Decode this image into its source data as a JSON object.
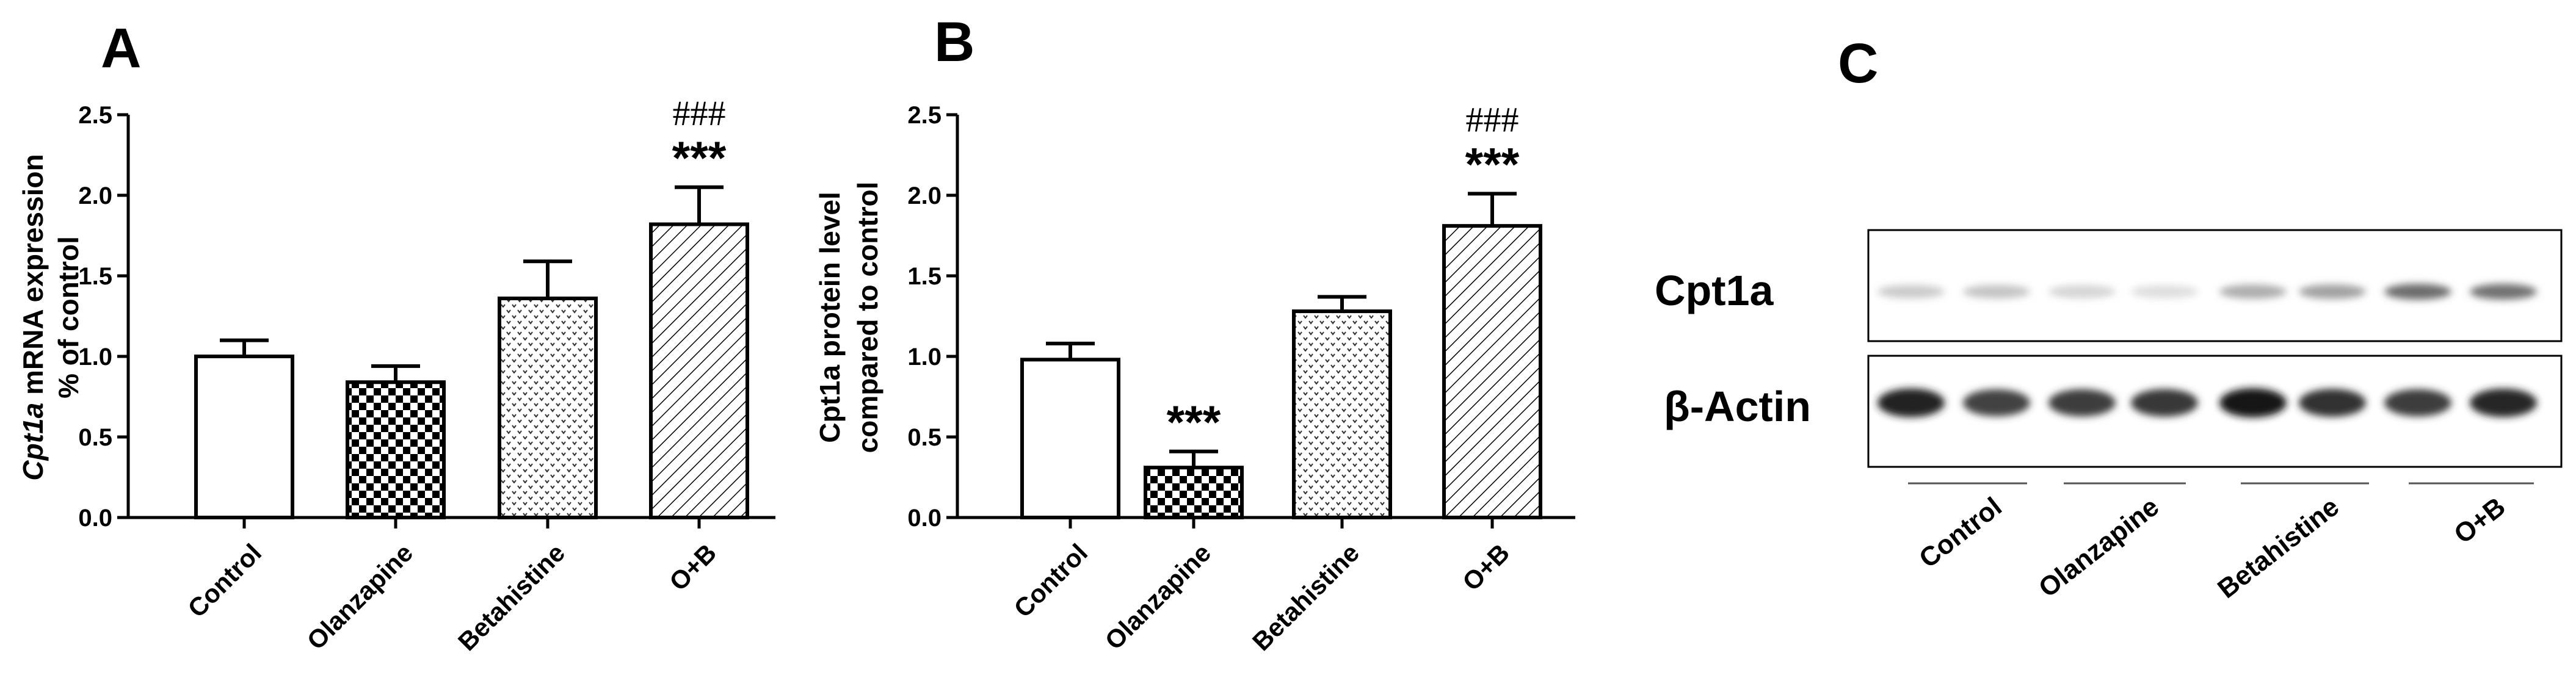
{
  "chart_data": [
    {
      "panel": "A",
      "type": "bar",
      "categories": [
        "Control",
        "Olanzapine",
        "Betahistine",
        "O+B"
      ],
      "values": [
        1.0,
        0.84,
        1.36,
        1.82
      ],
      "errors": [
        0.1,
        0.1,
        0.23,
        0.23
      ],
      "ylabel_italic": "Cpt1a",
      "ylabel_rest": " mRNA expression",
      "ylabel_line2": "% of control",
      "ylim": [
        0,
        2.5
      ],
      "yticks": [
        "0.0",
        "0.5",
        "1.0",
        "1.5",
        "2.0",
        "2.5"
      ],
      "patterns": [
        "white",
        "checker",
        "dots",
        "hatch"
      ],
      "annotations": [
        {
          "index": 3,
          "stars": "***",
          "hash": "###"
        }
      ]
    },
    {
      "panel": "B",
      "type": "bar",
      "categories": [
        "Control",
        "Olanzapine",
        "Betahistine",
        "O+B"
      ],
      "values": [
        0.98,
        0.31,
        1.28,
        1.81
      ],
      "errors": [
        0.1,
        0.1,
        0.09,
        0.2
      ],
      "ylabel_line1": "Cpt1a protein level",
      "ylabel_line2": "compared to control",
      "ylim": [
        0,
        2.5
      ],
      "yticks": [
        "0.0",
        "0.5",
        "1.0",
        "1.5",
        "2.0",
        "2.5"
      ],
      "patterns": [
        "white",
        "checker",
        "dots",
        "hatch"
      ],
      "annotations": [
        {
          "index": 1,
          "stars": "***"
        },
        {
          "index": 3,
          "stars": "***",
          "hash": "###"
        }
      ]
    }
  ],
  "blot": {
    "panel": "C",
    "rows": [
      "Cpt1a",
      "β-Actin"
    ],
    "groups": [
      "Control",
      "Olanzapine",
      "Betahistine",
      "O+B"
    ],
    "lanes_per_group": 2,
    "band_intensity": {
      "Cpt1a": [
        0.22,
        0.25,
        0.18,
        0.14,
        0.35,
        0.4,
        0.62,
        0.6
      ],
      "β-Actin": [
        0.95,
        0.8,
        0.82,
        0.85,
        1.0,
        0.88,
        0.82,
        0.92
      ]
    }
  }
}
